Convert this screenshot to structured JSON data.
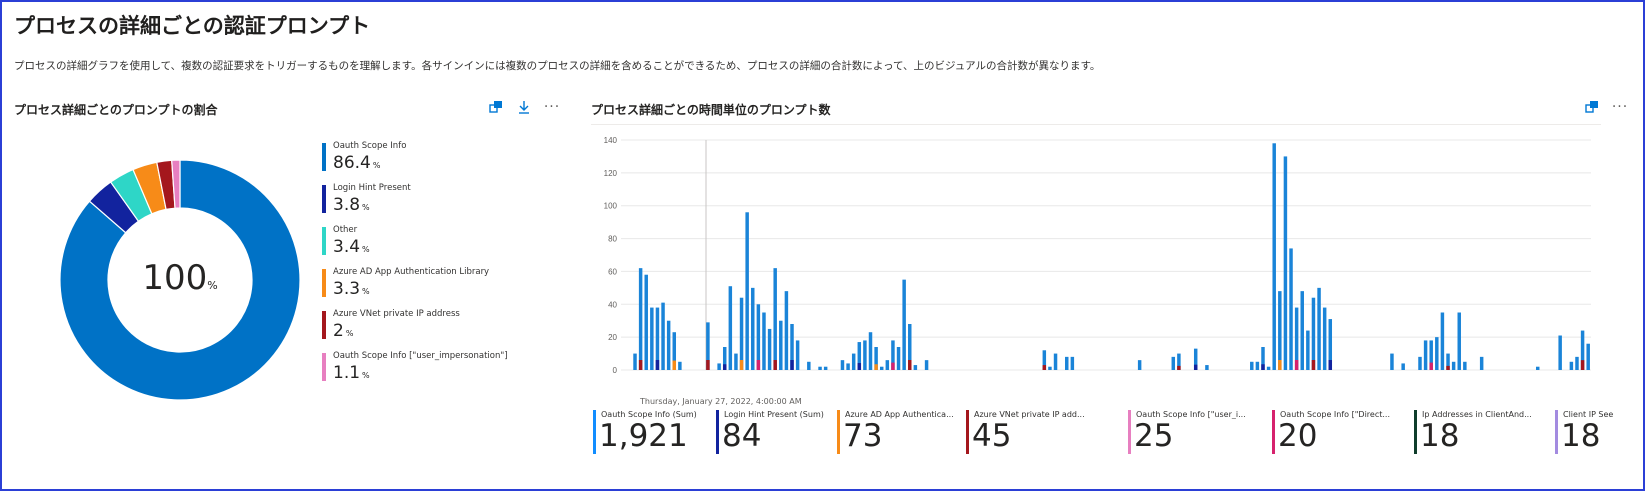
{
  "page": {
    "title": "プロセスの詳細ごとの認証プロンプト",
    "description": "プロセスの詳細グラフを使用して、複数の認証要求をトリガーするものを理解します。各サインインには複数のプロセスの詳細を含めることができるため、プロセスの詳細の合計数によって、上のビジュアルの合計数が異なります。"
  },
  "donut_panel": {
    "title": "プロセス詳細ごとのプロンプトの割合",
    "center_value": "100",
    "center_unit": "%",
    "icons": [
      "pin-icon",
      "download-icon",
      "more-icon"
    ],
    "more_glyph": "···"
  },
  "bar_panel": {
    "title": "プロセス詳細ごとの時間単位のプロンプト数",
    "tooltip_label": "Thursday, January 27, 2022, 4:00:00 AM",
    "icons": [
      "pin-icon",
      "more-icon"
    ],
    "more_glyph": "···"
  },
  "colors": {
    "oauth": "#118dff",
    "login_hint": "#12239e",
    "other": "#2ed6c7",
    "aad_lib": "#e66c37",
    "vnet": "#a4171d",
    "oauth_user": "#e77fc0",
    "oauth_direct": "#d6226d",
    "ip_addr": "#0f3d2b",
    "client_ip": "#a38be0"
  },
  "chart_data": [
    {
      "type": "pie",
      "title": "プロセス詳細ごとのプロンプトの割合",
      "slices": [
        {
          "name": "Oauth Scope Info",
          "value": 86.4,
          "display": "86.4",
          "color": "#0072c6"
        },
        {
          "name": "Login Hint Present",
          "value": 3.8,
          "display": "3.8",
          "color": "#12239e"
        },
        {
          "name": "Other",
          "value": 3.4,
          "display": "3.4",
          "color": "#2ed6c7"
        },
        {
          "name": "Azure AD App Authentication Library",
          "value": 3.3,
          "display": "3.3",
          "color": "#f78b18"
        },
        {
          "name": "Azure VNet private IP address",
          "value": 2.0,
          "display": "2",
          "color": "#a4171d"
        },
        {
          "name": "Oauth Scope Info [\"user_impersonation\"]",
          "value": 1.1,
          "display": "1.1",
          "color": "#e77fc0"
        }
      ],
      "unit": "%"
    },
    {
      "type": "bar",
      "title": "プロセス詳細ごとの時間単位のプロンプト数",
      "ylim": [
        0,
        140
      ],
      "yticks": [
        0,
        20,
        40,
        60,
        80,
        100,
        120,
        140
      ],
      "grid": true,
      "values": [
        0,
        0,
        10,
        62,
        58,
        38,
        38,
        41,
        30,
        23,
        5,
        0,
        0,
        0,
        0,
        29,
        0,
        4,
        14,
        51,
        10,
        44,
        96,
        50,
        40,
        35,
        25,
        62,
        30,
        48,
        28,
        18,
        0,
        5,
        0,
        2,
        2,
        0,
        0,
        6,
        4,
        10,
        17,
        18,
        23,
        14,
        2,
        6,
        18,
        14,
        55,
        28,
        3,
        0,
        6,
        0,
        0,
        0,
        0,
        0,
        0,
        0,
        0,
        0,
        0,
        0,
        0,
        0,
        0,
        0,
        0,
        0,
        0,
        0,
        0,
        12,
        2,
        10,
        0,
        8,
        8,
        0,
        0,
        0,
        0,
        0,
        0,
        0,
        0,
        0,
        0,
        0,
        6,
        0,
        0,
        0,
        0,
        0,
        8,
        10,
        0,
        0,
        13,
        0,
        3,
        0,
        0,
        0,
        0,
        0,
        0,
        0,
        5,
        5,
        14,
        2,
        138,
        48,
        130,
        74,
        38,
        48,
        24,
        44,
        50,
        38,
        31,
        0,
        0,
        0,
        0,
        0,
        0,
        0,
        0,
        0,
        0,
        10,
        0,
        4,
        0,
        0,
        8,
        18,
        18,
        20,
        35,
        10,
        5,
        35,
        5,
        0,
        0,
        8,
        0,
        0,
        0,
        0,
        0,
        0,
        0,
        0,
        0,
        2,
        0,
        0,
        0,
        21,
        0,
        5,
        8,
        24,
        16
      ],
      "legend": [
        {
          "name": "Oauth Scope Info (Sum)",
          "total": "1,921",
          "color": "#118dff"
        },
        {
          "name": "Login Hint Present (Sum)",
          "total": "84",
          "color": "#12239e"
        },
        {
          "name": "Azure AD App Authentica...",
          "total": "73",
          "color": "#f78b18"
        },
        {
          "name": "Azure VNet private IP add...",
          "total": "45",
          "color": "#a4171d"
        },
        {
          "name": "Oauth Scope Info [\"user_i...",
          "total": "25",
          "color": "#e77fc0"
        },
        {
          "name": "Oauth Scope Info [\"Direct...",
          "total": "20",
          "color": "#d6226d"
        },
        {
          "name": "Ip Addresses in ClientAnd...",
          "total": "18",
          "color": "#0f3d2b"
        },
        {
          "name": "Client IP See",
          "total": "18",
          "color": "#a38be0"
        }
      ]
    }
  ]
}
